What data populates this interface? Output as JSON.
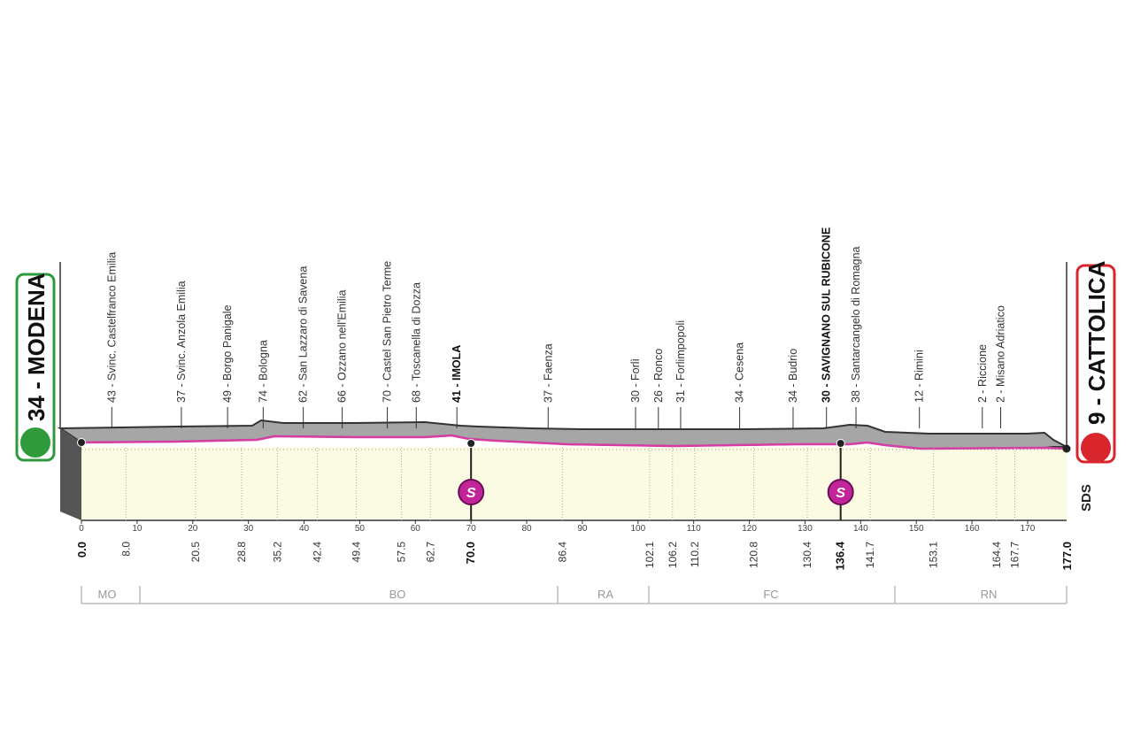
{
  "chart_data": {
    "type": "profile",
    "start": "34 - MODENA",
    "finish": "9 - CATTOLICA",
    "logo": "SDS",
    "xlim": [
      0,
      177.0
    ],
    "xticks": [
      0,
      10,
      20,
      30,
      40,
      50,
      60,
      70,
      80,
      90,
      100,
      110,
      120,
      130,
      140,
      150,
      160,
      170
    ],
    "start_km": {
      "value": 0,
      "label": "0.0"
    },
    "finish_km": {
      "value": 177,
      "label": "177.0"
    },
    "points": [
      {
        "km": {
          "value": 8,
          "label": "8.0"
        },
        "label": "43 - Svinc. Castelfranco Emilia"
      },
      {
        "km": 20.5,
        "label": "37 - Svinc. Anzola Emilia"
      },
      {
        "km": 28.8,
        "label": "49 - Borgo Panigale"
      },
      {
        "km": 35.2,
        "label": "74 - Bologna"
      },
      {
        "km": 42.4,
        "label": "62 - San Lazzaro di Savena"
      },
      {
        "km": 49.4,
        "label": "66 - Ozzano nell'Emilia"
      },
      {
        "km": 57.5,
        "label": "70 - Castel San Pietro Terme"
      },
      {
        "km": 62.7,
        "label": "68 - Toscanella di Dozza"
      },
      {
        "km": {
          "value": 70,
          "label": "70.0"
        },
        "label": "41 - IMOLA",
        "sprint": true
      },
      {
        "km": 86.4,
        "label": "37 - Faenza"
      },
      {
        "km": 102.1,
        "label": "30 - Forlì"
      },
      {
        "km": 106.2,
        "label": "26 - Ronco"
      },
      {
        "km": 110.2,
        "label": "31 - Forlimpopoli"
      },
      {
        "km": 120.8,
        "label": "34 - Cesena"
      },
      {
        "km": 130.4,
        "label": "34 - Budrio"
      },
      {
        "km": 136.4,
        "label": "30 - SAVIGNANO SUL RUBICONE",
        "sprint": true
      },
      {
        "km": 141.7,
        "label": "38 - Santarcangelo di Romagna"
      },
      {
        "km": 153.1,
        "label": "12 - Rimini"
      },
      {
        "km": 164.4,
        "label": "2 - Riccione"
      },
      {
        "km": 167.7,
        "label": "2 - Misano Adriatico"
      }
    ],
    "provinces": [
      "MO",
      "BO",
      "RA",
      "FC",
      "RN"
    ],
    "sprint_label": "S"
  }
}
